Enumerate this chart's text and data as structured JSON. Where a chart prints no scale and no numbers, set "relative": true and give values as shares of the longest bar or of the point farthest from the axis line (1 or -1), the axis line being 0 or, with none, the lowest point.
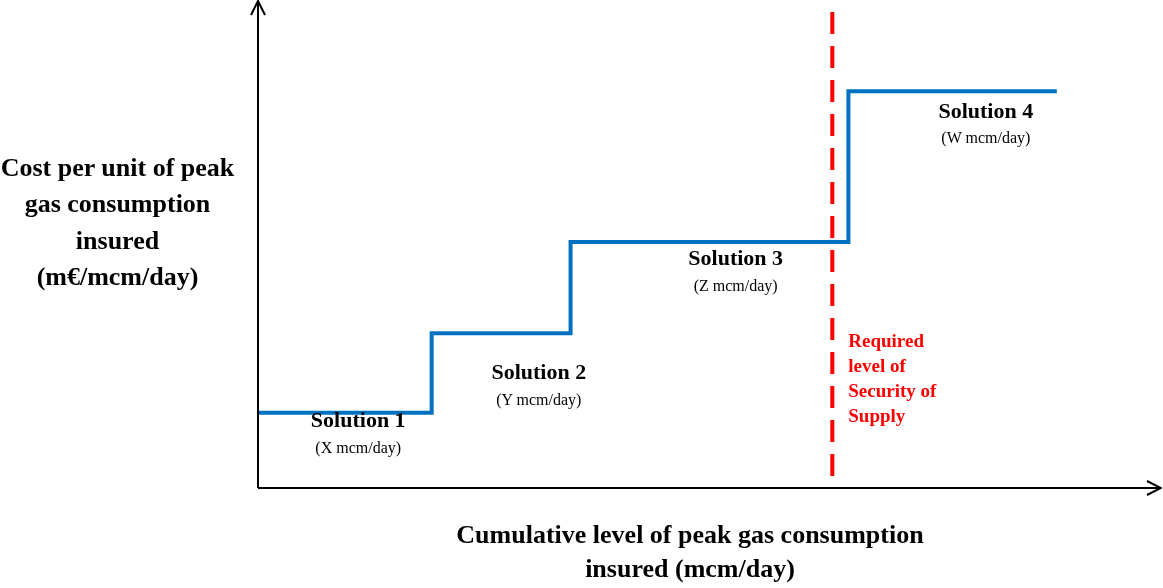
{
  "chart_data": {
    "type": "step",
    "relative": true,
    "tick_labels": false,
    "xlabel": "Cumulative level of peak gas consumption insured (mcm/day)",
    "ylabel": "Cost per unit of peak gas consumption insured (m€/mcm/day)",
    "categories": [
      null,
      null,
      null,
      null,
      null,
      null,
      null,
      null,
      null,
      null,
      null,
      null,
      null,
      null,
      null,
      null,
      null,
      null,
      null,
      null,
      null,
      null,
      null,
      null,
      null,
      null,
      null
    ],
    "series": [
      {
        "color": "#0070c0",
        "values": [
          0.19,
          0.19,
          0.19,
          0.19,
          0.19,
          0.19,
          0.39,
          0.39,
          0.39,
          0.39,
          0.62,
          0.62,
          0.62,
          0.62,
          0.62,
          0.62,
          0.62,
          0.62,
          1,
          1,
          1,
          1,
          1,
          1,
          null,
          null,
          null
        ]
      }
    ],
    "ref_lines": [
      {
        "axis": "x",
        "label": "Required level of Security of Supply",
        "color": "#ff0000",
        "line_style": "dashed"
      }
    ],
    "annotations": [
      "Solution 1\n(X mcm/day)",
      "Solution 2\n(Y mcm/day)",
      "Solution 3\n(Z mcm/day)",
      "Solution 4\n(W mcm/day)"
    ],
    "legend": false
  }
}
